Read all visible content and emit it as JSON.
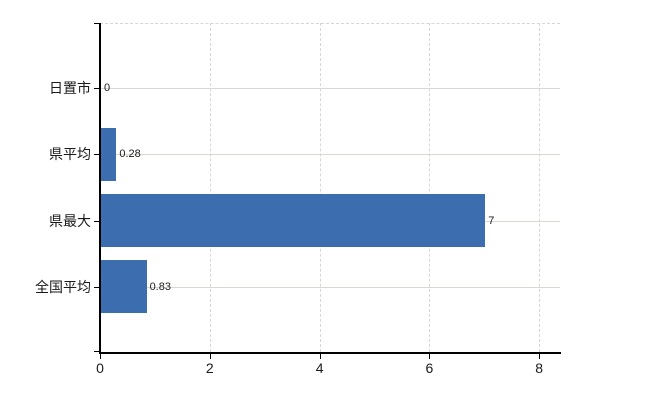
{
  "chart_data": {
    "type": "bar",
    "orientation": "horizontal",
    "title": "",
    "categories": [
      "日置市",
      "県平均",
      "県最大",
      "全国平均"
    ],
    "values": [
      0,
      0.28,
      7,
      0.83
    ],
    "value_labels": [
      "0",
      "0.28",
      "7",
      "0.83"
    ],
    "x_axis": {
      "ticks": [
        0,
        2,
        4,
        6,
        8
      ],
      "tick_labels": [
        "0",
        "2",
        "4",
        "6",
        "8"
      ],
      "range": [
        0,
        8.4
      ]
    },
    "grid": {
      "horizontal_lines": "solid, one per category center",
      "vertical_lines": "dashed, at ticks 2 4 6 8",
      "top_border": "dashed"
    },
    "legend": "none"
  },
  "colors": {
    "background": "#ffffff",
    "bar": "#3c6dae",
    "axis": "#000000",
    "grid_horizontal": "#d5dbd1",
    "grid_vertical": "#d8d5d5",
    "text": "#1a1a1a"
  }
}
